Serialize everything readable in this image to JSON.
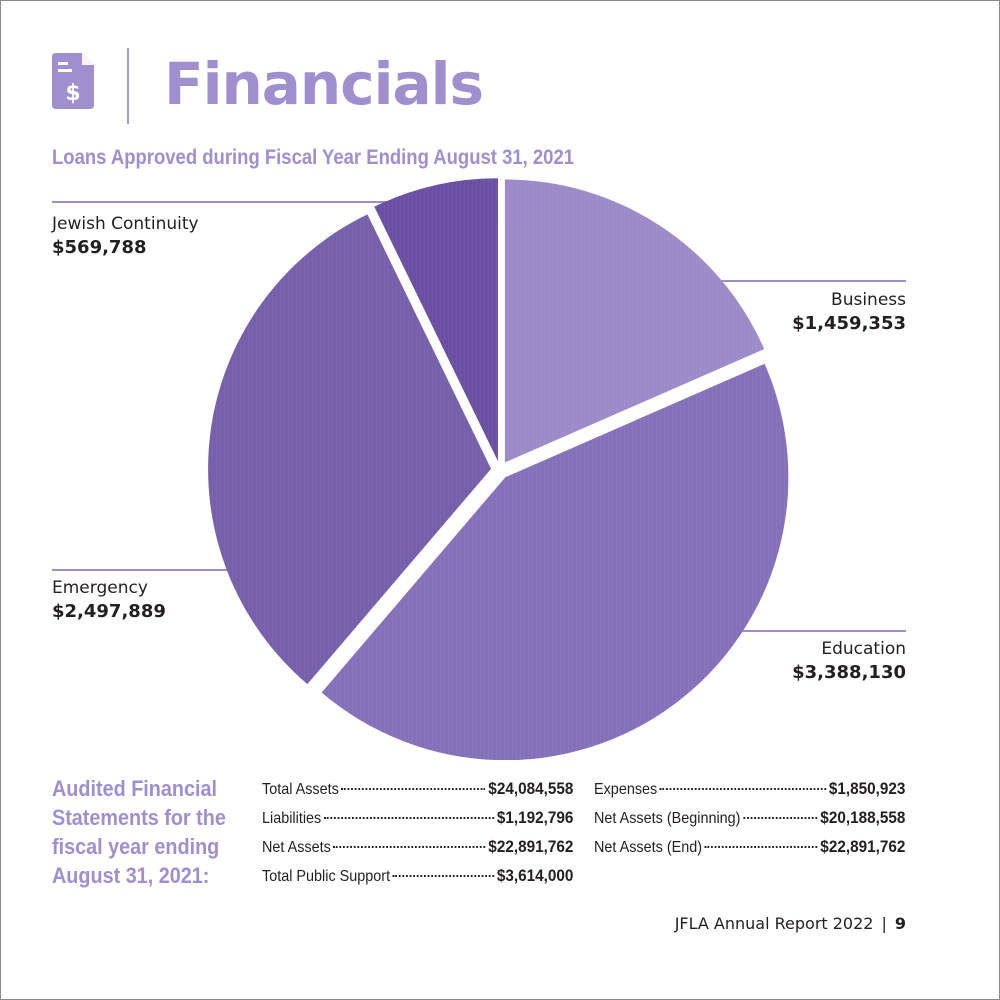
{
  "header": {
    "title": "Financials",
    "icon": "invoice-dollar-icon",
    "accent_color": "#a08fce"
  },
  "chart_data": {
    "type": "pie",
    "title": "Loans Approved during Fiscal Year Ending August 31, 2021",
    "slices": [
      {
        "label": "Business",
        "value": 1459353,
        "value_label": "$1,459,353",
        "color": "#9d8ac8"
      },
      {
        "label": "Education",
        "value": 3388130,
        "value_label": "$3,388,130",
        "color": "#8570ba"
      },
      {
        "label": "Emergency",
        "value": 2497889,
        "value_label": "$2,497,889",
        "color": "#7660ab"
      },
      {
        "label": "Jewish Continuity",
        "value": 569788,
        "value_label": "$569,788",
        "color": "#6a4fa3"
      }
    ]
  },
  "audited": {
    "heading": "Audited Financial Statements for the fiscal year ending August 31, 2021:",
    "left": [
      {
        "label": "Total Assets",
        "value": "$24,084,558"
      },
      {
        "label": "Liabilities",
        "value": "$1,192,796"
      },
      {
        "label": "Net Assets",
        "value": "$22,891,762"
      },
      {
        "label": "Total Public Support",
        "value": "$3,614,000"
      }
    ],
    "right": [
      {
        "label": "Expenses",
        "value": "$1,850,923"
      },
      {
        "label": "Net Assets (Beginning)",
        "value": "$20,188,558"
      },
      {
        "label": "Net Assets (End)",
        "value": "$22,891,762"
      }
    ]
  },
  "footer": {
    "report": "JFLA Annual Report 2022",
    "separator": "|",
    "page": "9"
  }
}
